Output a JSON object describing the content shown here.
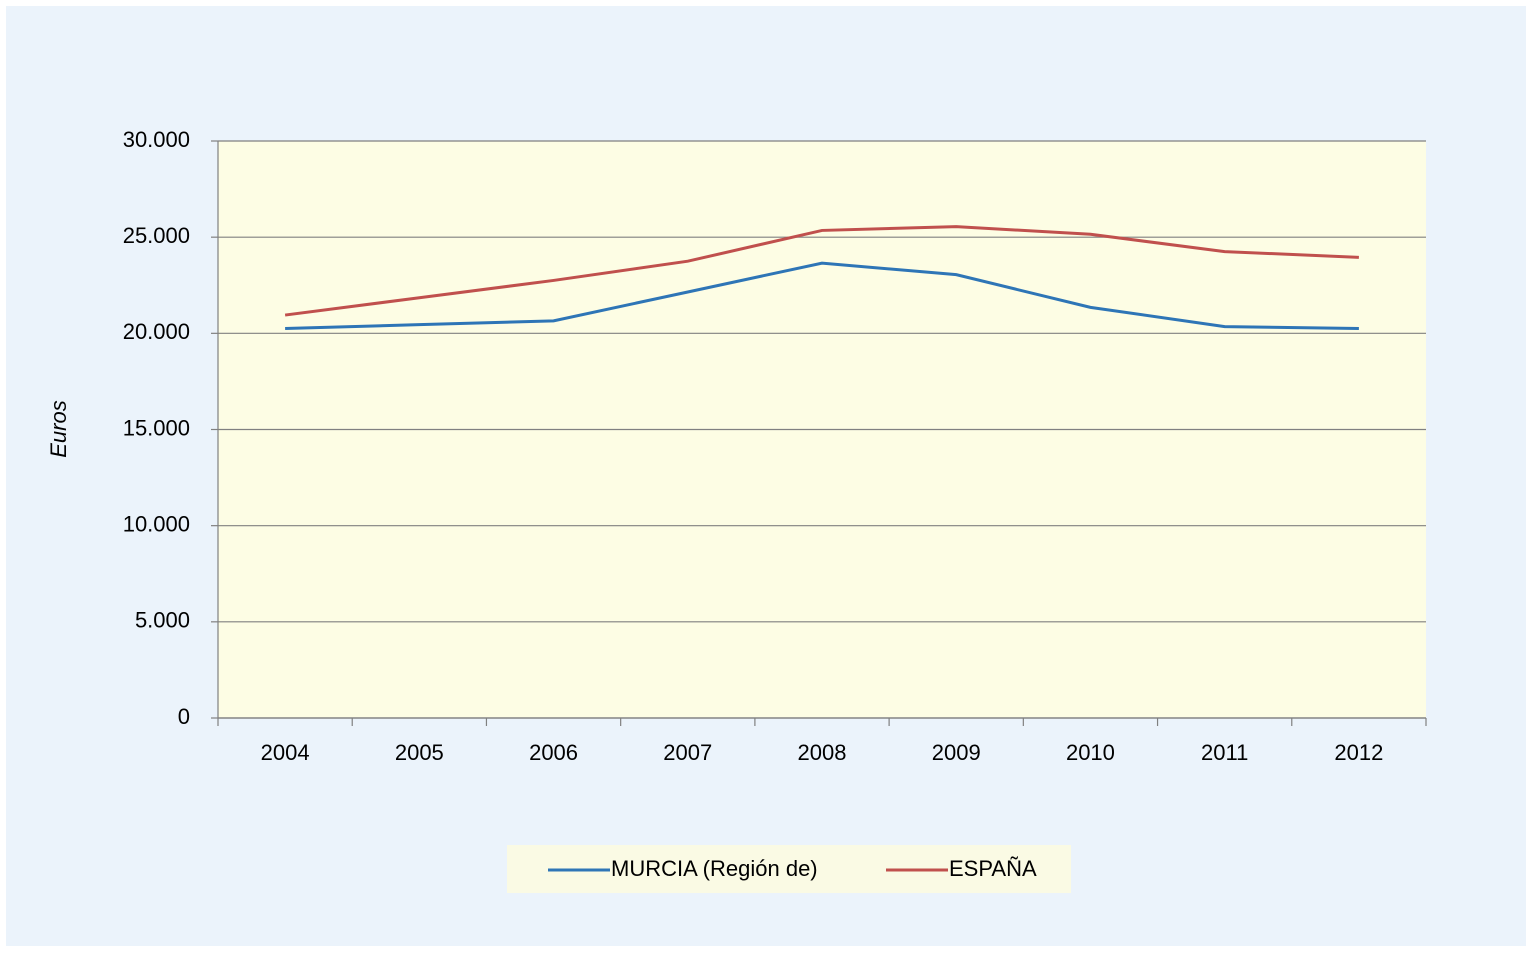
{
  "chart_data": {
    "type": "line",
    "y_label": "Euros",
    "categories": [
      "2004",
      "2005",
      "2006",
      "2007",
      "2008",
      "2009",
      "2010",
      "2011",
      "2012"
    ],
    "series": [
      {
        "name": "MURCIA (Región de)",
        "color": "#2e75b6",
        "values": [
          20250,
          20450,
          20650,
          22150,
          23650,
          23050,
          21350,
          20350,
          20250
        ]
      },
      {
        "name": "ESPAÑA",
        "color": "#c0504d",
        "values": [
          20950,
          21850,
          22750,
          23750,
          25350,
          25550,
          25150,
          24250,
          23950
        ]
      }
    ],
    "ylim": [
      0,
      30000
    ],
    "yticks": [
      0,
      {
        "value": 5000,
        "label": "5.000"
      },
      {
        "value": 10000,
        "label": "10.000"
      },
      {
        "value": 15000,
        "label": "15.000"
      },
      {
        "value": 20000,
        "label": "20.000"
      },
      {
        "value": 25000,
        "label": "25.000"
      },
      {
        "value": 30000,
        "label": "30.000"
      }
    ],
    "grid": true,
    "legend": "bottom"
  }
}
